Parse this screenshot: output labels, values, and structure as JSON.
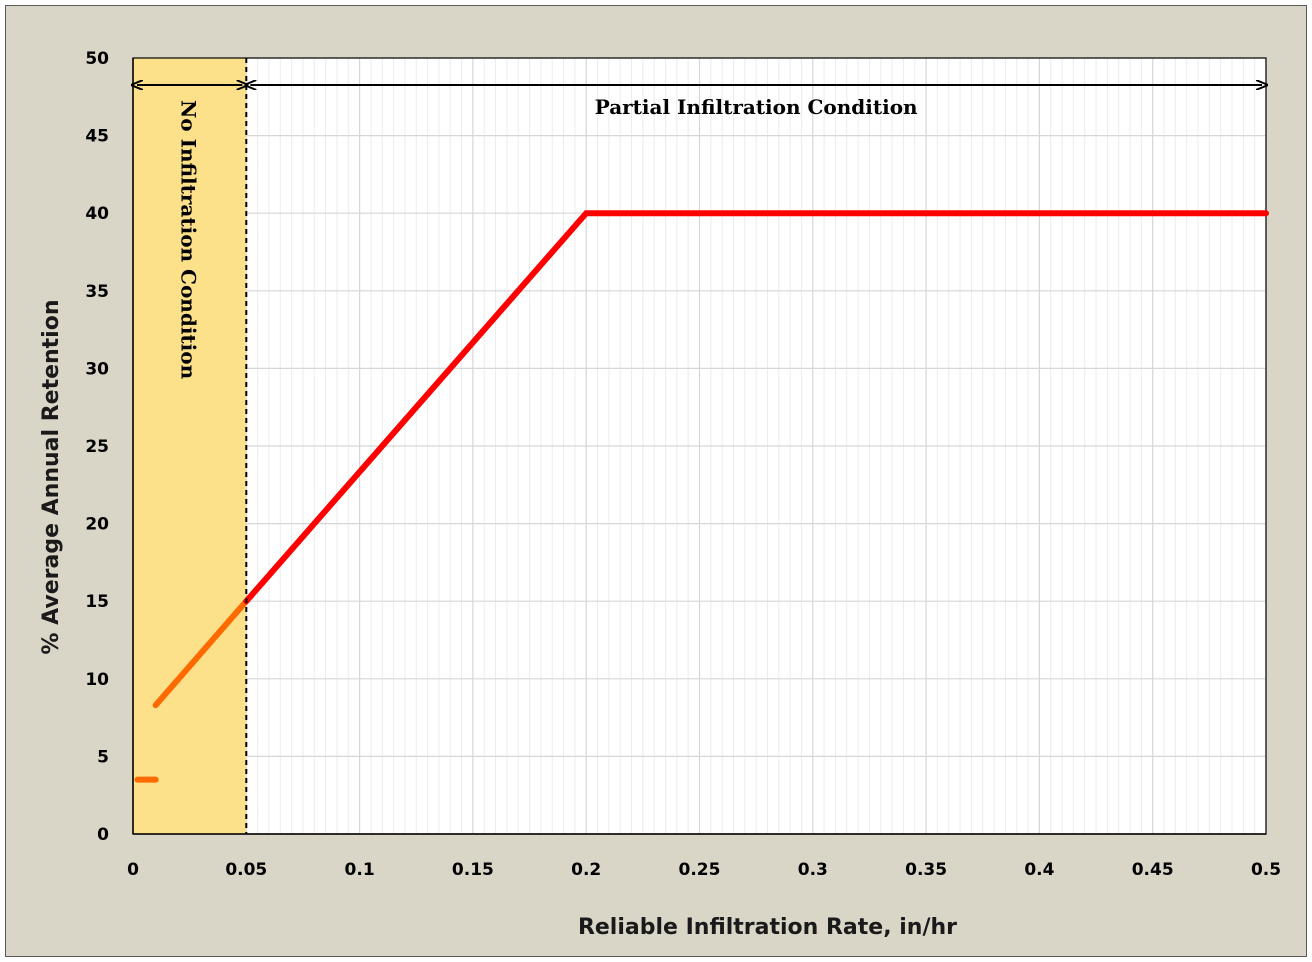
{
  "chart_data": {
    "type": "line",
    "title": "",
    "xlabel": "Reliable Infiltration Rate, in/hr",
    "ylabel": "% Average Annual Retention",
    "xlim": [
      0,
      0.5
    ],
    "ylim": [
      0,
      50
    ],
    "x_ticks": [
      "0",
      "0.05",
      "0.1",
      "0.15",
      "0.2",
      "0.25",
      "0.3",
      "0.35",
      "0.4",
      "0.45",
      "0.5"
    ],
    "y_ticks": [
      "0",
      "5",
      "10",
      "15",
      "20",
      "25",
      "30",
      "35",
      "40",
      "45",
      "50"
    ],
    "grid": {
      "major": true,
      "minor_x": true
    },
    "regions": [
      {
        "label": "No Infiltration Condition",
        "x_range": [
          0,
          0.05
        ],
        "color": "#fde08a"
      },
      {
        "label": "Partial Infiltration Condition",
        "x_range": [
          0.05,
          0.5
        ]
      }
    ],
    "threshold_line": {
      "x": 0.05,
      "style": "dashed",
      "color": "#000000"
    },
    "series": [
      {
        "color": "#ff6a00",
        "points": [
          [
            0.01,
            8.3
          ],
          [
            0.05,
            15
          ]
        ]
      },
      {
        "color": "#ff0000",
        "points": [
          [
            0.05,
            15
          ],
          [
            0.2,
            40
          ],
          [
            0.5,
            40
          ]
        ]
      },
      {
        "color": "#ff6a00",
        "points": [
          [
            0.002,
            3.5
          ],
          [
            0.01,
            3.5
          ]
        ]
      }
    ]
  }
}
